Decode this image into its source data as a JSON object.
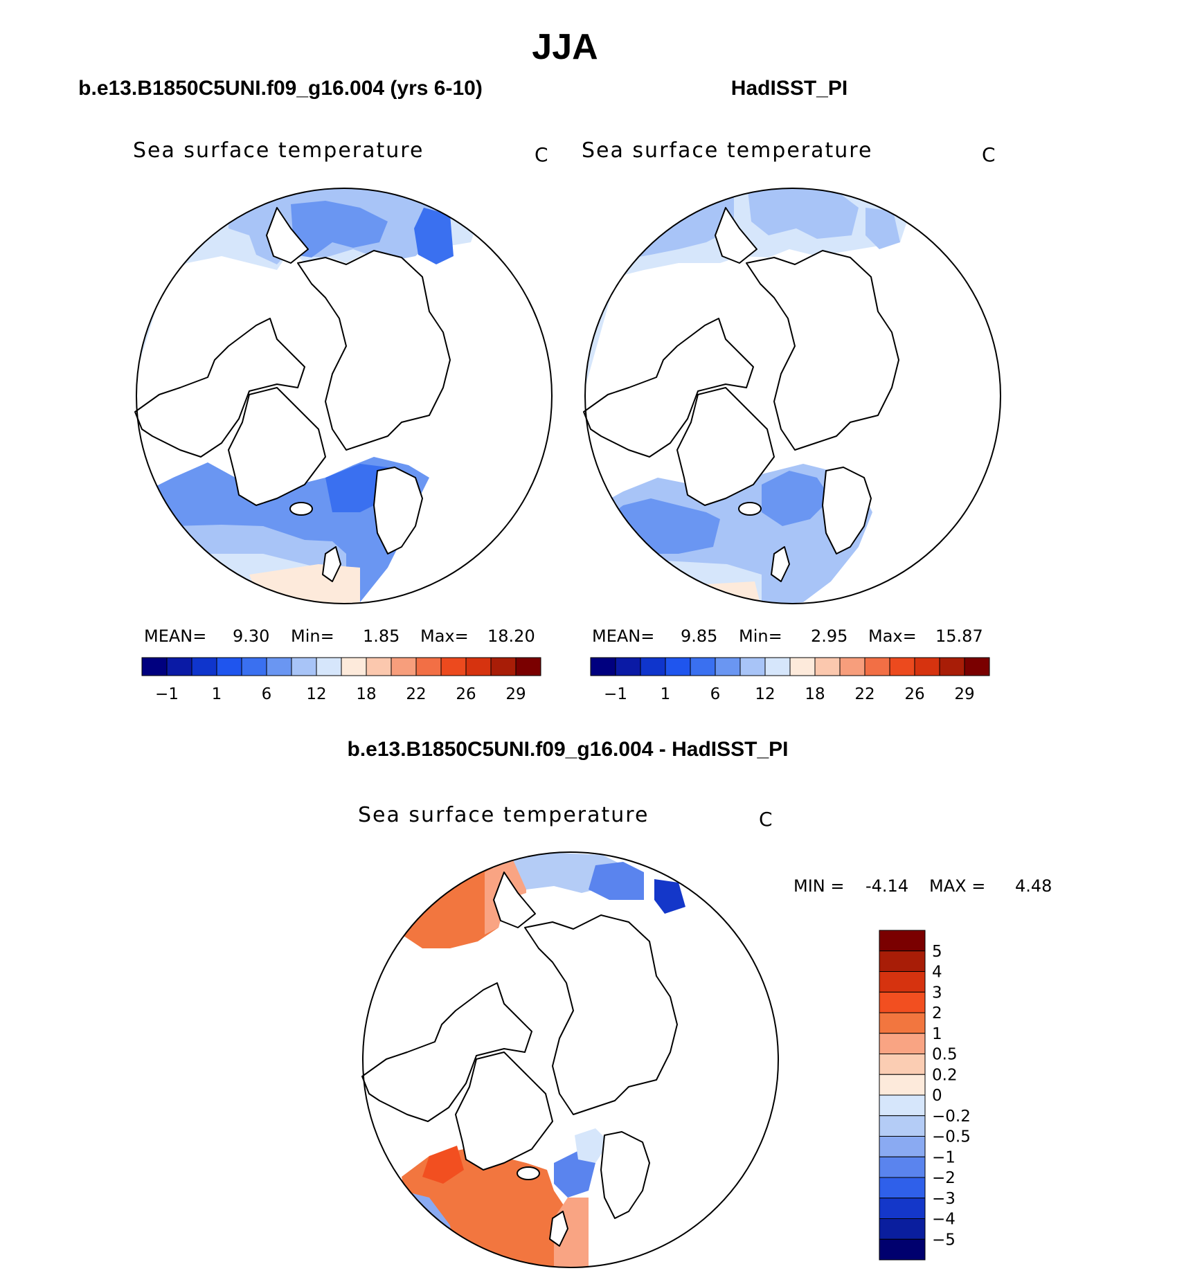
{
  "page": {
    "season_title": "JJA"
  },
  "chart_data": [
    {
      "type": "heatmap",
      "projection": "north-polar-stereographic",
      "title": "b.e13.B1850C5UNI.f09_g16.004 (yrs 6-10)",
      "variable": "Sea surface temperature",
      "units": "C",
      "stats": {
        "mean_label": "MEAN=",
        "mean": "9.30",
        "min_label": "Min=",
        "min": "1.85",
        "max_label": "Max=",
        "max": "18.20"
      },
      "levels": [
        "-1",
        "1",
        "6",
        "12",
        "18",
        "22",
        "26",
        "29"
      ],
      "colors": [
        "#00007f",
        "#0a1aa5",
        "#0f35cc",
        "#1f55ee",
        "#3a70f0",
        "#6a96f2",
        "#a8c4f7",
        "#d6e6fb",
        "#fdeadb",
        "#fbc8ae",
        "#f79e7c",
        "#f26f45",
        "#ec4a1e",
        "#d6330f",
        "#a81d07",
        "#7a0000"
      ]
    },
    {
      "type": "heatmap",
      "projection": "north-polar-stereographic",
      "title": "HadISST_PI",
      "variable": "Sea surface temperature",
      "units": "C",
      "stats": {
        "mean_label": "MEAN=",
        "mean": "9.85",
        "min_label": "Min=",
        "min": "2.95",
        "max_label": "Max=",
        "max": "15.87"
      },
      "levels": [
        "-1",
        "1",
        "6",
        "12",
        "18",
        "22",
        "26",
        "29"
      ],
      "colors": [
        "#00007f",
        "#0a1aa5",
        "#0f35cc",
        "#1f55ee",
        "#3a70f0",
        "#6a96f2",
        "#a8c4f7",
        "#d6e6fb",
        "#fdeadb",
        "#fbc8ae",
        "#f79e7c",
        "#f26f45",
        "#ec4a1e",
        "#d6330f",
        "#a81d07",
        "#7a0000"
      ]
    },
    {
      "type": "heatmap",
      "projection": "north-polar-stereographic",
      "title": "b.e13.B1850C5UNI.f09_g16.004 - HadISST_PI",
      "variable": "Sea surface temperature",
      "units": "C",
      "stats": {
        "min_label": "MIN =",
        "min": "-4.14",
        "max_label": "MAX =",
        "max": "4.48"
      },
      "levels": [
        "5",
        "4",
        "3",
        "2",
        "1",
        "0.5",
        "0.2",
        "0",
        "-0.2",
        "-0.5",
        "-1",
        "-2",
        "-3",
        "-4",
        "-5"
      ],
      "colors": [
        "#7a0000",
        "#a81d07",
        "#d6330f",
        "#f24f20",
        "#f2763f",
        "#f9a483",
        "#fbcdb3",
        "#fdeadb",
        "#d6e6fb",
        "#b4ccf6",
        "#8aaaf2",
        "#5a84ee",
        "#2f60ea",
        "#1437c9",
        "#0a1e9e",
        "#00006e"
      ]
    }
  ]
}
